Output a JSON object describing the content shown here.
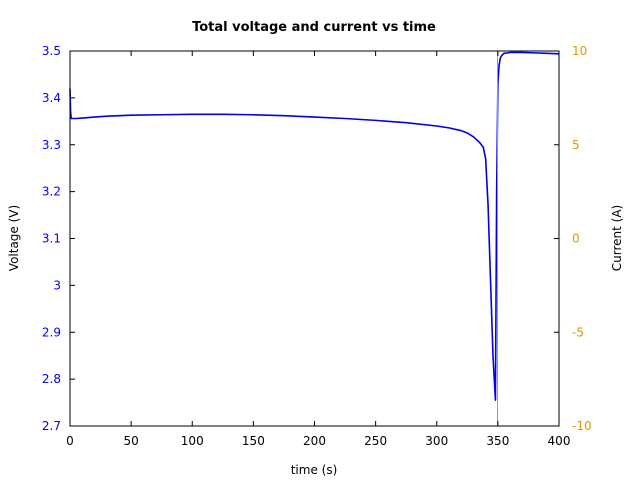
{
  "chart_data": {
    "type": "line",
    "title": "Total voltage and current vs time",
    "xlabel": "time (s)",
    "ylabel": "Voltage (V)",
    "y2label": "Current (A)",
    "xlim": [
      0,
      400
    ],
    "ylim": [
      2.7,
      3.5
    ],
    "y2lim": [
      -10,
      10
    ],
    "xticks": [
      0,
      50,
      100,
      150,
      200,
      250,
      300,
      350,
      400
    ],
    "xtick_labels": [
      "0",
      "50",
      "100",
      "150",
      "200",
      "250",
      "300",
      "350",
      "400"
    ],
    "yticks": [
      2.7,
      2.8,
      2.9,
      3.0,
      3.1,
      3.2,
      3.3,
      3.4,
      3.5
    ],
    "ytick_labels": [
      "2.7",
      "2.8",
      "2.9",
      "3",
      "3.1",
      "3.2",
      "3.3",
      "3.4",
      "3.5"
    ],
    "y2ticks": [
      -10,
      -5,
      0,
      5,
      10
    ],
    "y2tick_labels": [
      "-10",
      "-5",
      "0",
      "5",
      "10"
    ],
    "grid": false,
    "series": [
      {
        "axis": "left",
        "color": "#0000ee",
        "x": [
          0,
          0.5,
          1,
          3,
          5,
          10,
          20,
          30,
          50,
          75,
          100,
          125,
          150,
          175,
          200,
          225,
          250,
          275,
          300,
          310,
          320,
          325,
          330,
          335,
          338,
          340,
          342,
          344,
          346,
          348,
          349,
          350,
          351,
          352,
          353,
          355,
          358,
          360,
          365,
          370,
          380,
          390,
          400
        ],
        "y": [
          3.42,
          3.37,
          3.356,
          3.356,
          3.356,
          3.357,
          3.359,
          3.361,
          3.363,
          3.364,
          3.365,
          3.365,
          3.364,
          3.362,
          3.359,
          3.356,
          3.352,
          3.347,
          3.34,
          3.336,
          3.33,
          3.325,
          3.317,
          3.305,
          3.295,
          3.27,
          3.17,
          3.01,
          2.85,
          2.755,
          3.2,
          3.43,
          3.47,
          3.485,
          3.49,
          3.495,
          3.496,
          3.497,
          3.497,
          3.497,
          3.496,
          3.495,
          3.494
        ]
      },
      {
        "axis": "right",
        "color": "#e69500",
        "x": [
          349.7,
          349.7
        ],
        "y": [
          -10,
          10
        ]
      }
    ]
  }
}
